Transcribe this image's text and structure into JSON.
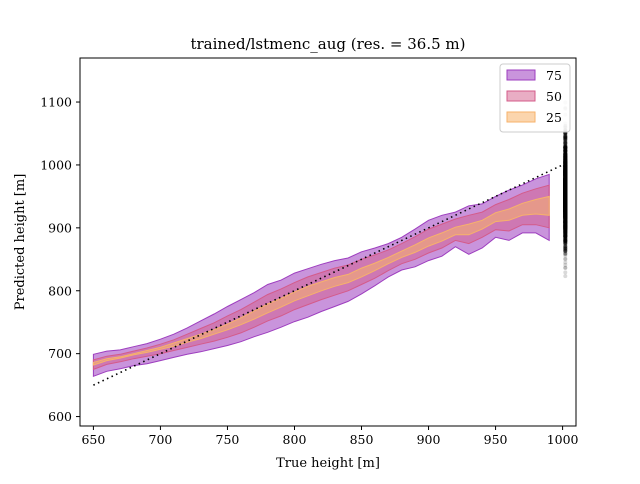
{
  "chart_data": {
    "type": "scatter",
    "title": "trained/lstmenc_aug (res. = 36.5 m)",
    "xlabel": "True height [m]",
    "ylabel": "Predicted height [m]",
    "xlim": [
      640,
      1010
    ],
    "ylim": [
      585,
      1170
    ],
    "xticks": [
      650,
      700,
      750,
      800,
      850,
      900,
      950,
      1000
    ],
    "yticks": [
      600,
      700,
      800,
      900,
      1000,
      1100
    ],
    "grid": false,
    "legend_position": "top-right",
    "scatter": {
      "color": "#000000",
      "alpha": 0.15,
      "description_points": "dense cloud along diagonal; predicted roughly tracks true height"
    },
    "identity_line": {
      "x": [
        650,
        1000
      ],
      "y": [
        650,
        1000
      ],
      "style": "dotted",
      "color": "#000000"
    },
    "x": [
      650,
      660,
      670,
      680,
      690,
      700,
      710,
      720,
      730,
      740,
      750,
      760,
      770,
      780,
      790,
      800,
      810,
      820,
      830,
      840,
      850,
      860,
      870,
      880,
      890,
      900,
      910,
      920,
      930,
      940,
      950,
      960,
      970,
      980,
      990
    ],
    "series": [
      {
        "name": "75",
        "color": "#9d3dbf",
        "lower": [
          664,
          672,
          676,
          681,
          684,
          689,
          694,
          699,
          703,
          708,
          713,
          719,
          727,
          734,
          742,
          751,
          758,
          767,
          775,
          783,
          795,
          808,
          822,
          833,
          838,
          848,
          855,
          870,
          858,
          868,
          885,
          880,
          892,
          892,
          880
        ],
        "upper": [
          699,
          704,
          706,
          711,
          716,
          723,
          731,
          741,
          752,
          763,
          775,
          786,
          797,
          810,
          817,
          828,
          835,
          842,
          848,
          852,
          862,
          868,
          875,
          885,
          898,
          912,
          920,
          925,
          935,
          938,
          950,
          960,
          968,
          978,
          985
        ]
      },
      {
        "name": "50",
        "color": "#d45b8a",
        "lower": [
          675,
          683,
          687,
          692,
          696,
          700,
          705,
          710,
          715,
          720,
          726,
          733,
          742,
          752,
          760,
          770,
          778,
          786,
          793,
          800,
          810,
          820,
          832,
          843,
          850,
          860,
          868,
          880,
          875,
          885,
          897,
          895,
          905,
          905,
          900
        ],
        "upper": [
          690,
          696,
          699,
          704,
          709,
          715,
          722,
          731,
          740,
          749,
          760,
          770,
          782,
          794,
          803,
          813,
          822,
          829,
          836,
          841,
          850,
          857,
          865,
          875,
          886,
          898,
          906,
          914,
          920,
          925,
          937,
          945,
          955,
          962,
          968
        ]
      },
      {
        "name": "25",
        "color": "#f7b26a",
        "lower": [
          682,
          689,
          693,
          698,
          702,
          707,
          712,
          718,
          724,
          731,
          738,
          746,
          755,
          765,
          774,
          784,
          792,
          800,
          807,
          813,
          822,
          832,
          843,
          853,
          861,
          871,
          879,
          889,
          889,
          898,
          910,
          912,
          920,
          922,
          920
        ],
        "upper": [
          686,
          692,
          695,
          700,
          705,
          710,
          717,
          724,
          731,
          738,
          747,
          757,
          768,
          779,
          788,
          798,
          807,
          814,
          821,
          826,
          836,
          844,
          853,
          863,
          873,
          884,
          892,
          901,
          906,
          912,
          924,
          930,
          939,
          945,
          950
        ]
      }
    ]
  }
}
